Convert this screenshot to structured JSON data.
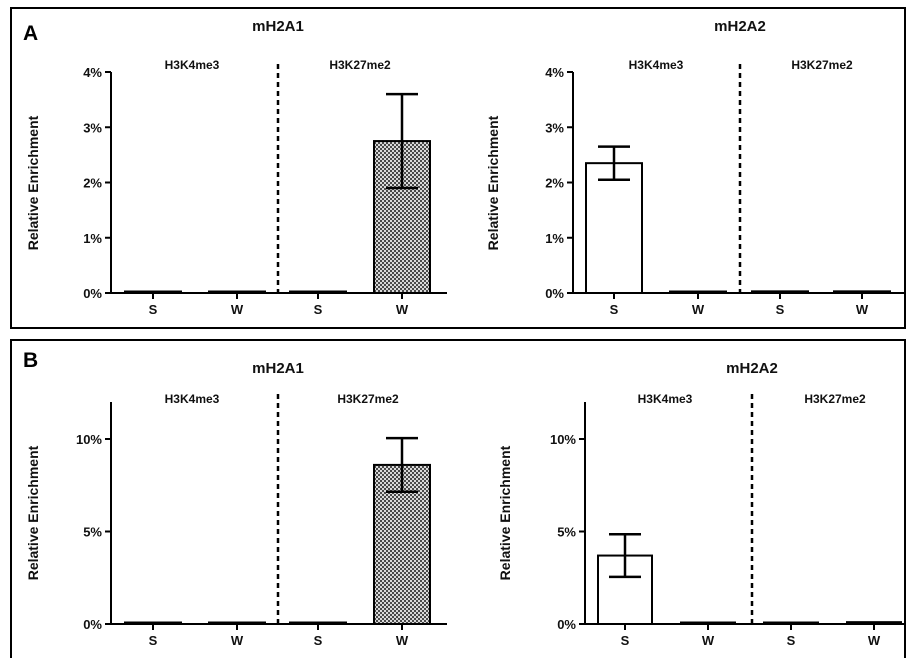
{
  "panels": [
    {
      "label": "A"
    },
    {
      "label": "B"
    }
  ],
  "chart_data": [
    {
      "type": "bar",
      "panel": "A",
      "title": "mH2A1",
      "ylabel": "Relative Enrichment",
      "ylim": [
        0,
        4
      ],
      "yticks": [
        0,
        1,
        2,
        3,
        4
      ],
      "ytick_labels": [
        "0%",
        "1%",
        "2%",
        "3%",
        "4%"
      ],
      "groups": [
        "H3K4me3",
        "H3K27me2"
      ],
      "categories": [
        "S",
        "W",
        "S",
        "W"
      ],
      "values": [
        0.0,
        0.0,
        0.0,
        2.75
      ],
      "errors": [
        0,
        0,
        0,
        0.85
      ],
      "fills": [
        "hollow",
        "hollow",
        "hollow",
        "hatched"
      ]
    },
    {
      "type": "bar",
      "panel": "A",
      "title": "mH2A2",
      "ylabel": "Relative Enrichment",
      "ylim": [
        0,
        4
      ],
      "yticks": [
        0,
        1,
        2,
        3,
        4
      ],
      "ytick_labels": [
        "0%",
        "1%",
        "2%",
        "3%",
        "4%"
      ],
      "groups": [
        "H3K4me3",
        "H3K27me2"
      ],
      "categories": [
        "S",
        "W",
        "S",
        "W"
      ],
      "values": [
        2.35,
        0.0,
        0.03,
        0.03
      ],
      "errors": [
        0.3,
        0,
        0,
        0
      ],
      "fills": [
        "hollow",
        "hollow",
        "hollow",
        "hollow"
      ]
    },
    {
      "type": "bar",
      "panel": "B",
      "title": "mH2A1",
      "ylabel": "Relative Enrichment",
      "ylim": [
        0,
        12
      ],
      "yticks": [
        0,
        5,
        10
      ],
      "ytick_labels": [
        "0%",
        "5%",
        "10%"
      ],
      "groups": [
        "H3K4me3",
        "H3K27me2"
      ],
      "categories": [
        "S",
        "W",
        "S",
        "W"
      ],
      "values": [
        0.0,
        0.0,
        0.0,
        8.6
      ],
      "errors": [
        0,
        0,
        0,
        1.45
      ],
      "fills": [
        "hollow",
        "hollow",
        "hollow",
        "hatched"
      ]
    },
    {
      "type": "bar",
      "panel": "B",
      "title": "mH2A2",
      "ylabel": "Relative Enrichment",
      "ylim": [
        0,
        12
      ],
      "yticks": [
        0,
        5,
        10
      ],
      "ytick_labels": [
        "0%",
        "5%",
        "10%"
      ],
      "groups": [
        "H3K4me3",
        "H3K27me2"
      ],
      "categories": [
        "S",
        "W",
        "S",
        "W"
      ],
      "values": [
        3.7,
        0.0,
        0.05,
        0.1
      ],
      "errors": [
        1.15,
        0,
        0,
        0
      ],
      "fills": [
        "hollow",
        "hollow",
        "hollow",
        "hollow"
      ]
    }
  ]
}
